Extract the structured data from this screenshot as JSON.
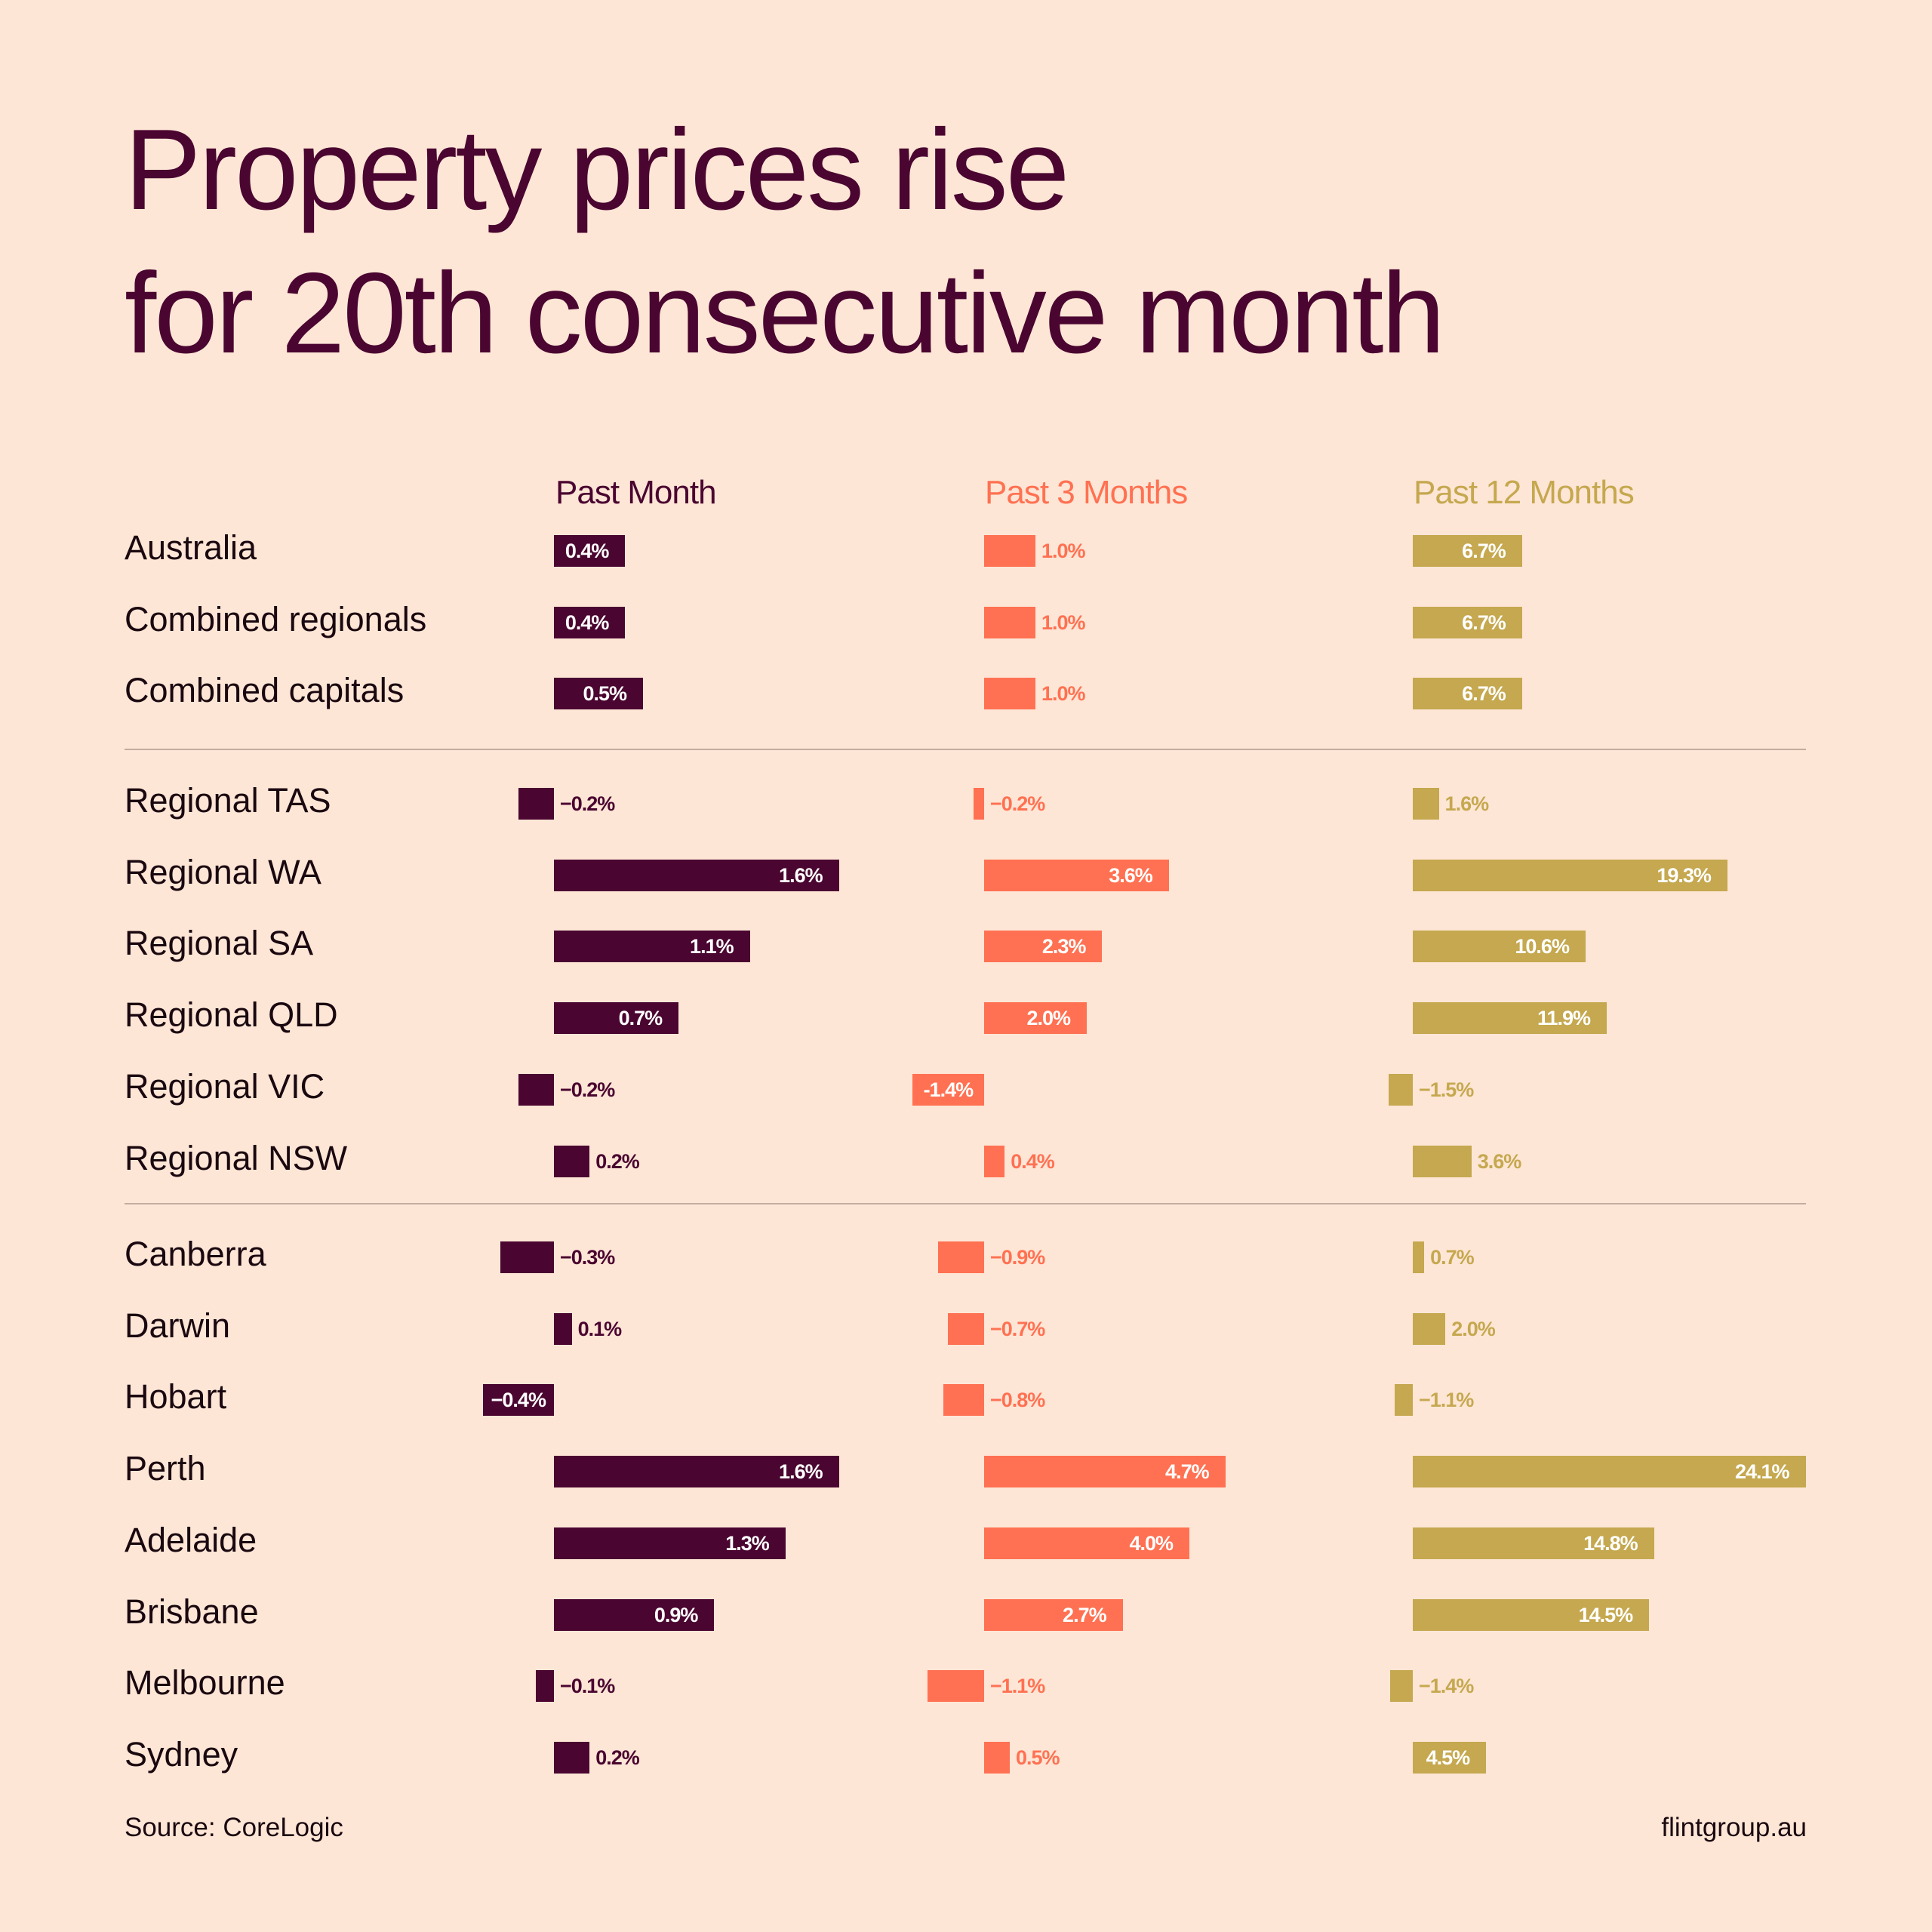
{
  "title_lines": [
    "Property prices rise",
    "for 20th consecutive month"
  ],
  "source": "Source: CoreLogic",
  "brand": "flintgroup.au",
  "chart_data": {
    "type": "bar",
    "orientation": "horizontal",
    "title": "Property prices rise for 20th consecutive month",
    "series": [
      {
        "name": "Past Month",
        "color": "#4a0530",
        "values": [
          0.4,
          0.4,
          0.5,
          -0.2,
          1.6,
          1.1,
          0.7,
          -0.2,
          0.2,
          -0.3,
          0.1,
          -0.4,
          1.6,
          1.3,
          0.9,
          -0.1,
          0.2
        ],
        "labels": [
          "0.4%",
          "0.4%",
          "0.5%",
          "−0.2%",
          "1.6%",
          "1.1%",
          "0.7%",
          "−0.2%",
          "0.2%",
          "−0.3%",
          "0.1%",
          "−0.4%",
          "1.6%",
          "1.3%",
          "0.9%",
          "−0.1%",
          "0.2%"
        ]
      },
      {
        "name": "Past 3 Months",
        "color": "#ff7152",
        "values": [
          1.0,
          1.0,
          1.0,
          -0.2,
          3.6,
          2.3,
          2.0,
          -1.4,
          0.4,
          -0.9,
          -0.7,
          -0.8,
          4.7,
          4.0,
          2.7,
          -1.1,
          0.5
        ],
        "labels": [
          "1.0%",
          "1.0%",
          "1.0%",
          "−0.2%",
          "3.6%",
          "2.3%",
          "2.0%",
          "-1.4%",
          "0.4%",
          "−0.9%",
          "−0.7%",
          "−0.8%",
          "4.7%",
          "4.0%",
          "2.7%",
          "−1.1%",
          "0.5%"
        ]
      },
      {
        "name": "Past 12 Months",
        "color": "#c5a84f",
        "values": [
          6.7,
          6.7,
          6.7,
          1.6,
          19.3,
          10.6,
          11.9,
          -1.5,
          3.6,
          0.7,
          2.0,
          -1.1,
          24.1,
          14.8,
          14.5,
          -1.4,
          4.5
        ],
        "labels": [
          "6.7%",
          "6.7%",
          "6.7%",
          "1.6%",
          "19.3%",
          "10.6%",
          "11.9%",
          "−1.5%",
          "3.6%",
          "0.7%",
          "2.0%",
          "−1.1%",
          "24.1%",
          "14.8%",
          "14.5%",
          "−1.4%",
          "4.5%"
        ]
      }
    ],
    "groups": [
      [
        "Australia",
        "Combined regionals",
        "Combined capitals"
      ],
      [
        "Regional TAS",
        "Regional WA",
        "Regional SA",
        "Regional QLD",
        "Regional VIC",
        "Regional NSW"
      ],
      [
        "Canberra",
        "Darwin",
        "Hobart",
        "Perth",
        "Adelaide",
        "Brisbane",
        "Melbourne",
        "Sydney"
      ]
    ],
    "inside_label_color": "#ffffff"
  }
}
